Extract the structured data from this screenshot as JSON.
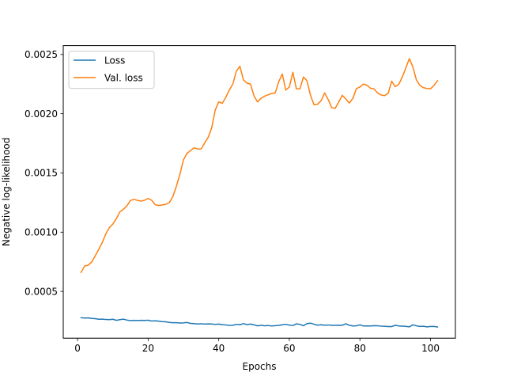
{
  "chart_data": {
    "type": "line",
    "title": "",
    "xlabel": "Epochs",
    "ylabel": "Negative log-likelihood",
    "xlim": [
      -4.05,
      107.05
    ],
    "ylim": [
      0.000105,
      0.002575
    ],
    "xticks": [
      0,
      20,
      40,
      60,
      80,
      100
    ],
    "xtick_labels": [
      "0",
      "20",
      "40",
      "60",
      "80",
      "100"
    ],
    "yticks": [
      0.0005,
      0.001,
      0.0015,
      0.002,
      0.0025
    ],
    "ytick_labels": [
      "0.0005",
      "0.0010",
      "0.0015",
      "0.0020",
      "0.0025"
    ],
    "grid": false,
    "legend_position": "top-left",
    "series": [
      {
        "name": "Loss",
        "color": "#1f77b4",
        "x": [
          1,
          2,
          3,
          4,
          5,
          6,
          7,
          8,
          9,
          10,
          11,
          12,
          13,
          14,
          15,
          16,
          17,
          18,
          19,
          20,
          21,
          22,
          23,
          24,
          25,
          26,
          27,
          28,
          29,
          30,
          31,
          32,
          33,
          34,
          35,
          36,
          37,
          38,
          39,
          40,
          41,
          42,
          43,
          44,
          45,
          46,
          47,
          48,
          49,
          50,
          51,
          52,
          53,
          54,
          55,
          56,
          57,
          58,
          59,
          60,
          61,
          62,
          63,
          64,
          65,
          66,
          67,
          68,
          69,
          70,
          71,
          72,
          73,
          74,
          75,
          76,
          77,
          78,
          79,
          80,
          81,
          82,
          83,
          84,
          85,
          86,
          87,
          88,
          89,
          90,
          91,
          92,
          93,
          94,
          95,
          96,
          97,
          98,
          99,
          100,
          101,
          102
        ],
        "values": [
          0.000278,
          0.000275,
          0.000277,
          0.000272,
          0.00027,
          0.000265,
          0.000266,
          0.000263,
          0.000262,
          0.000265,
          0.000256,
          0.000262,
          0.000266,
          0.000258,
          0.000253,
          0.000256,
          0.000254,
          0.000256,
          0.000255,
          0.000257,
          0.00025,
          0.000252,
          0.000249,
          0.000245,
          0.000243,
          0.000238,
          0.000236,
          0.000236,
          0.000233,
          0.000234,
          0.000238,
          0.00023,
          0.000228,
          0.000225,
          0.000227,
          0.000224,
          0.000226,
          0.000225,
          0.000222,
          0.000224,
          0.00022,
          0.000217,
          0.000213,
          0.000214,
          0.000222,
          0.000219,
          0.000228,
          0.00022,
          0.000224,
          0.000218,
          0.000209,
          0.000214,
          0.00021,
          0.000212,
          0.000208,
          0.000211,
          0.000213,
          0.000218,
          0.000222,
          0.000216,
          0.000212,
          0.000226,
          0.000222,
          0.00021,
          0.000228,
          0.000232,
          0.000223,
          0.000215,
          0.000218,
          0.000215,
          0.000217,
          0.000214,
          0.000214,
          0.000215,
          0.000214,
          0.000227,
          0.000214,
          0.000208,
          0.00021,
          0.000218,
          0.000208,
          0.000209,
          0.000208,
          0.000211,
          0.00021,
          0.000207,
          0.000206,
          0.000203,
          0.000203,
          0.000214,
          0.000208,
          0.000207,
          0.000205,
          0.000201,
          0.000218,
          0.00021,
          0.000204,
          0.000206,
          0.000201,
          0.000204,
          0.000204,
          0.0002
        ]
      },
      {
        "name": "Val. loss",
        "color": "#ff7f0e",
        "x": [
          1,
          2,
          3,
          4,
          5,
          6,
          7,
          8,
          9,
          10,
          11,
          12,
          13,
          14,
          15,
          16,
          17,
          18,
          19,
          20,
          21,
          22,
          23,
          24,
          25,
          26,
          27,
          28,
          29,
          30,
          31,
          32,
          33,
          34,
          35,
          36,
          37,
          38,
          39,
          40,
          41,
          42,
          43,
          44,
          45,
          46,
          47,
          48,
          49,
          50,
          51,
          52,
          53,
          54,
          55,
          56,
          57,
          58,
          59,
          60,
          61,
          62,
          63,
          64,
          65,
          66,
          67,
          68,
          69,
          70,
          71,
          72,
          73,
          74,
          75,
          76,
          77,
          78,
          79,
          80,
          81,
          82,
          83,
          84,
          85,
          86,
          87,
          88,
          89,
          90,
          91,
          92,
          93,
          94,
          95,
          96,
          97,
          98,
          99,
          100,
          101,
          102
        ],
        "values": [
          0.00066,
          0.000715,
          0.00072,
          0.000748,
          0.0008,
          0.000855,
          0.000912,
          0.000985,
          0.001038,
          0.001068,
          0.001115,
          0.001172,
          0.001193,
          0.001223,
          0.001268,
          0.001277,
          0.001268,
          0.001262,
          0.00127,
          0.001285,
          0.00127,
          0.001232,
          0.001225,
          0.00123,
          0.001235,
          0.00125,
          0.0013,
          0.001388,
          0.001488,
          0.00161,
          0.001665,
          0.001688,
          0.001712,
          0.001703,
          0.001702,
          0.001752,
          0.0018,
          0.00188,
          0.00203,
          0.0021,
          0.002088,
          0.002138,
          0.0022,
          0.00225,
          0.00236,
          0.0024,
          0.002285,
          0.002258,
          0.00225,
          0.00215,
          0.0021,
          0.00213,
          0.002148,
          0.00216,
          0.00217,
          0.002175,
          0.00227,
          0.002335,
          0.0022,
          0.002225,
          0.00235,
          0.00221,
          0.00221,
          0.00231,
          0.002278,
          0.002155,
          0.002075,
          0.00208,
          0.00211,
          0.002175,
          0.00212,
          0.002052,
          0.002045,
          0.0021,
          0.002155,
          0.002125,
          0.00209,
          0.00213,
          0.002212,
          0.002225,
          0.00225,
          0.00224,
          0.002215,
          0.00221,
          0.002175,
          0.002158,
          0.002153,
          0.002172,
          0.002275,
          0.002228,
          0.002248,
          0.00231,
          0.002385,
          0.002465,
          0.002395,
          0.002285,
          0.002238,
          0.00222,
          0.002213,
          0.00221,
          0.00224,
          0.002278
        ]
      }
    ]
  }
}
